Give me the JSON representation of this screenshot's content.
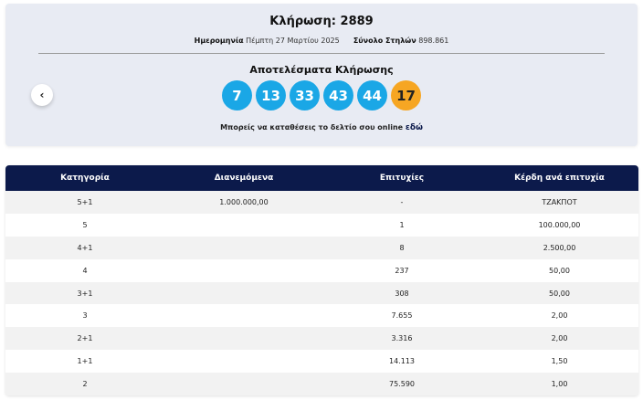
{
  "draw": {
    "title": "Κλήρωση: 2889",
    "date_label": "Ημερομηνία",
    "date_value": "Πέμπτη 27 Μαρτίου 2025",
    "columns_label": "Σύνολο Στηλών",
    "columns_value": "898.861",
    "results_title": "Αποτελέσματα Κλήρωσης",
    "numbers": [
      "7",
      "13",
      "33",
      "43",
      "44"
    ],
    "joker": "17",
    "online_text": "Μπορείς να καταθέσεις το δελτίο σου online",
    "online_link": "εδώ",
    "prev_icon": "‹"
  },
  "colors": {
    "ball": "#1aa7e6",
    "joker": "#f6a623",
    "header": "#0c1a4b",
    "card_bg": "#e8ebf3"
  },
  "table": {
    "headers": [
      "Κατηγορία",
      "Διανεμόμενα",
      "Επιτυχίες",
      "Κέρδη ανά επιτυχία"
    ],
    "rows": [
      [
        "5+1",
        "1.000.000,00",
        "-",
        "ΤΖΑΚΠΟΤ"
      ],
      [
        "5",
        "",
        "1",
        "100.000,00"
      ],
      [
        "4+1",
        "",
        "8",
        "2.500,00"
      ],
      [
        "4",
        "",
        "237",
        "50,00"
      ],
      [
        "3+1",
        "",
        "308",
        "50,00"
      ],
      [
        "3",
        "",
        "7.655",
        "2,00"
      ],
      [
        "2+1",
        "",
        "3.316",
        "2,00"
      ],
      [
        "1+1",
        "",
        "14.113",
        "1,50"
      ],
      [
        "2",
        "",
        "75.590",
        "1,00"
      ]
    ]
  }
}
